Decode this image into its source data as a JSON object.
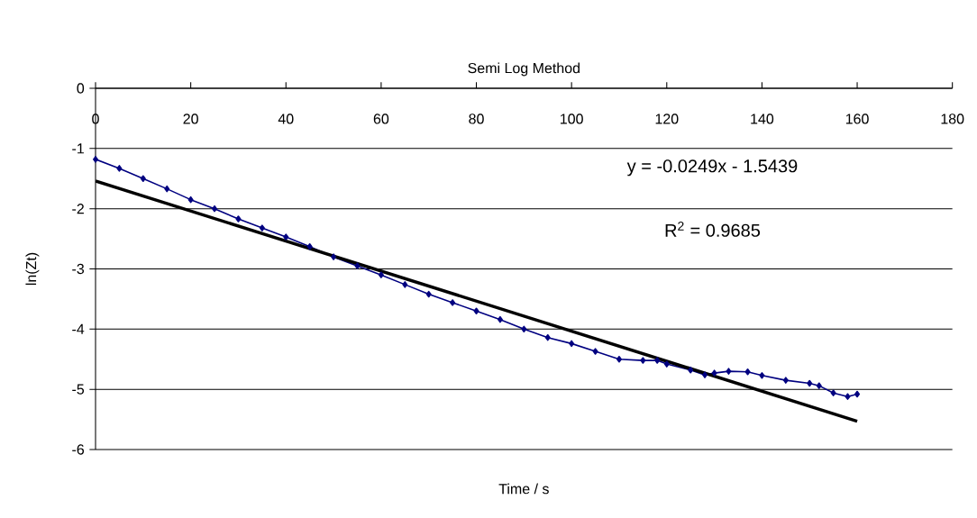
{
  "chart_data": {
    "type": "line",
    "title": "Semi Log Method",
    "xlabel": "Time / s",
    "ylabel": "ln(Zt)",
    "xlim": [
      0,
      180
    ],
    "xticks": [
      0,
      20,
      40,
      60,
      80,
      100,
      120,
      140,
      160,
      180
    ],
    "ylim": [
      -6,
      0
    ],
    "yticks": [
      -6,
      -5,
      -4,
      -3,
      -2,
      -1,
      0
    ],
    "grid": "y",
    "series": [
      {
        "color": "#000080",
        "marker": "diamond",
        "x": [
          0,
          5,
          10,
          15,
          20,
          25,
          30,
          35,
          40,
          45,
          50,
          55,
          60,
          65,
          70,
          75,
          80,
          85,
          90,
          95,
          100,
          105,
          110,
          115,
          118,
          120,
          125,
          128,
          130,
          133,
          137,
          140,
          145,
          150,
          152,
          155,
          158,
          160
        ],
        "values": [
          -1.18,
          -1.33,
          -1.5,
          -1.67,
          -1.85,
          -2.0,
          -2.17,
          -2.32,
          -2.47,
          -2.63,
          -2.8,
          -2.95,
          -3.1,
          -3.26,
          -3.42,
          -3.56,
          -3.7,
          -3.84,
          -4.0,
          -4.14,
          -4.24,
          -4.37,
          -4.5,
          -4.52,
          -4.52,
          -4.58,
          -4.68,
          -4.76,
          -4.73,
          -4.7,
          -4.71,
          -4.77,
          -4.85,
          -4.9,
          -4.94,
          -5.06,
          -5.12,
          -5.08
        ]
      },
      {
        "color": "#000000",
        "marker": "none",
        "x": [
          0,
          160
        ],
        "values": [
          -1.54,
          -5.53
        ]
      }
    ],
    "annotations": [
      "y = -0.0249x - 1.5439",
      "R$^{2}$ = 0.9685"
    ]
  }
}
